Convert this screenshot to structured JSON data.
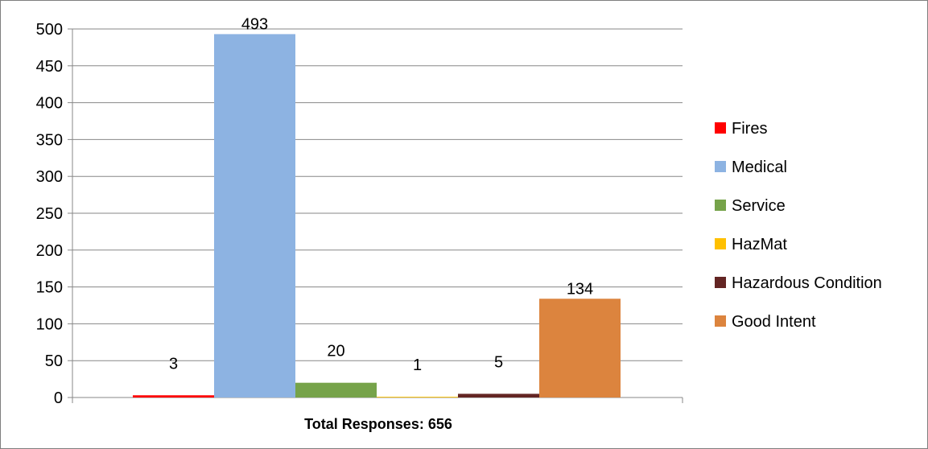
{
  "chart_data": {
    "type": "bar",
    "xlabel": "Total Responses: 656",
    "ylim": [
      0,
      500
    ],
    "yticks": [
      0,
      50,
      100,
      150,
      200,
      250,
      300,
      350,
      400,
      450,
      500
    ],
    "grid": true,
    "legend_position": "right",
    "series": [
      {
        "name": "Fires",
        "value": 3,
        "color": "#ff0000"
      },
      {
        "name": "Medical",
        "value": 493,
        "color": "#8db3e2"
      },
      {
        "name": "Service",
        "value": 20,
        "color": "#76a34a"
      },
      {
        "name": "HazMat",
        "value": 1,
        "color": "#ffc000"
      },
      {
        "name": "Hazardous Condition",
        "value": 5,
        "color": "#632523"
      },
      {
        "name": "Good Intent",
        "value": 134,
        "color": "#dc843e"
      }
    ]
  }
}
